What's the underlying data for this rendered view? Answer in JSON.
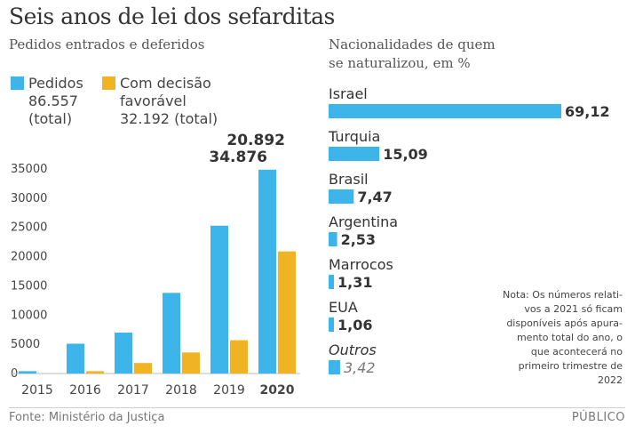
{
  "title": "Seis anos de lei dos sefarditas",
  "left_subtitle": "Pedidos entrados e deferidos",
  "right_subtitle": [
    "Nacionalidades de quem",
    "se naturalizou, em %"
  ],
  "legend": {
    "pedidos": [
      "Pedidos",
      "86.557",
      "(total)"
    ],
    "decisao": [
      "Com decisão",
      "favorável",
      "32.192 (total)"
    ]
  },
  "colors": {
    "pedidos": "#3db5ea",
    "decisao": "#f0b323",
    "text": "#333333",
    "axis": "#bbbbbb"
  },
  "chart_data": [
    {
      "type": "bar",
      "categories": [
        "2015",
        "2016",
        "2017",
        "2018",
        "2019",
        "2020"
      ],
      "series": [
        {
          "name": "Pedidos",
          "values": [
            400,
            5100,
            7000,
            13800,
            25300,
            34876
          ]
        },
        {
          "name": "Com decisão favorável",
          "values": [
            0,
            400,
            1800,
            3600,
            5700,
            20892
          ]
        }
      ],
      "yticks": [
        "0",
        "5000",
        "10000",
        "15000",
        "20000",
        "25000",
        "30000",
        "35000"
      ],
      "ylim": [
        0,
        35000
      ],
      "value_labels": {
        "decisao_2020": "20.892",
        "pedidos_2020": "34.876"
      },
      "grid": false
    },
    {
      "type": "bar",
      "orientation": "horizontal",
      "categories": [
        "Israel",
        "Turquia",
        "Brasil",
        "Argentina",
        "Marrocos",
        "EUA",
        "Outros"
      ],
      "values": [
        69.12,
        15.09,
        7.47,
        2.53,
        1.31,
        1.06,
        3.42
      ],
      "labels": [
        "69,12",
        "15,09",
        "7,47",
        "2,53",
        "1,31",
        "1,06",
        "3,42"
      ]
    }
  ],
  "note": [
    "Nota: Os números relati-",
    "vos a 2021 só ficam",
    "disponíveis após apura-",
    "mento total do ano, o",
    "que acontecerá no",
    "primeiro trimestre de",
    "2022"
  ],
  "source": "Fonte: Ministério da Justiça",
  "brand": "PÚBLICO"
}
